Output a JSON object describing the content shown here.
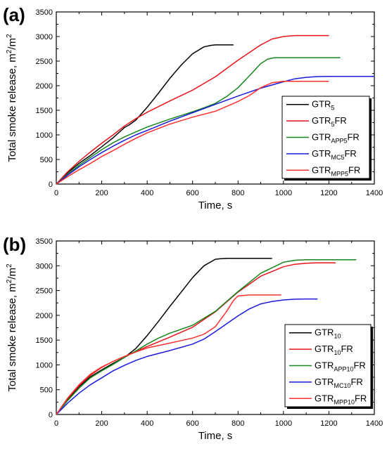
{
  "chart_data": [
    {
      "type": "line",
      "panel_label": "(a)",
      "xlabel": "Time, s",
      "ylabel": "Total smoke release, m",
      "ylabel_sup1": "2",
      "ylabel_mid": "/m",
      "ylabel_sup2": "2",
      "xlim": [
        0,
        1400
      ],
      "ylim": [
        0,
        3500
      ],
      "xticks": [
        0,
        200,
        400,
        600,
        800,
        1000,
        1200,
        1400
      ],
      "yticks": [
        0,
        500,
        1000,
        1500,
        2000,
        2500,
        3000,
        3500
      ],
      "grid": false,
      "legend_position": "bottom-right",
      "series": [
        {
          "name": "GTR",
          "sub": "5",
          "suffix": "",
          "color": "#000000",
          "x": [
            0,
            50,
            100,
            150,
            200,
            250,
            300,
            320,
            350,
            400,
            450,
            500,
            550,
            600,
            650,
            680,
            700,
            740,
            780
          ],
          "y": [
            0,
            230,
            420,
            580,
            760,
            940,
            1150,
            1200,
            1300,
            1560,
            1850,
            2150,
            2420,
            2650,
            2790,
            2820,
            2830,
            2830,
            2830
          ]
        },
        {
          "name": "GTR",
          "sub": "5",
          "suffix": "FR",
          "color": "#e8141b",
          "x": [
            0,
            50,
            100,
            150,
            200,
            250,
            300,
            350,
            400,
            500,
            600,
            700,
            800,
            900,
            950,
            1000,
            1050,
            1100,
            1200
          ],
          "y": [
            0,
            250,
            460,
            650,
            830,
            1000,
            1180,
            1330,
            1460,
            1690,
            1910,
            2180,
            2520,
            2830,
            2950,
            3000,
            3020,
            3020,
            3020
          ]
        },
        {
          "name": "GTR",
          "sub": "APP5",
          "suffix": "FR",
          "color": "#16861d",
          "x": [
            0,
            50,
            100,
            150,
            200,
            250,
            300,
            350,
            400,
            500,
            600,
            650,
            700,
            750,
            800,
            850,
            900,
            930,
            960,
            1000,
            1100,
            1250
          ],
          "y": [
            0,
            200,
            380,
            540,
            700,
            840,
            960,
            1060,
            1160,
            1320,
            1470,
            1550,
            1640,
            1780,
            1960,
            2200,
            2450,
            2540,
            2570,
            2570,
            2570,
            2570
          ]
        },
        {
          "name": "GTR",
          "sub": "MC5",
          "suffix": "FR",
          "color": "#1a1ae0",
          "x": [
            0,
            50,
            100,
            150,
            200,
            250,
            300,
            350,
            400,
            500,
            600,
            700,
            800,
            900,
            1000,
            1050,
            1100,
            1150,
            1200,
            1300,
            1400
          ],
          "y": [
            0,
            180,
            350,
            500,
            640,
            770,
            890,
            1000,
            1090,
            1280,
            1450,
            1620,
            1790,
            1950,
            2080,
            2140,
            2170,
            2185,
            2190,
            2190,
            2190
          ]
        },
        {
          "name": "GTR",
          "sub": "MPP5",
          "suffix": "FR",
          "color": "#ff3030",
          "x": [
            0,
            50,
            100,
            150,
            200,
            250,
            300,
            350,
            400,
            500,
            600,
            700,
            800,
            850,
            900,
            950,
            1000,
            1050,
            1100,
            1200
          ],
          "y": [
            0,
            150,
            290,
            420,
            560,
            680,
            810,
            930,
            1040,
            1220,
            1360,
            1480,
            1680,
            1800,
            1960,
            2060,
            2090,
            2090,
            2090,
            2090
          ]
        }
      ]
    },
    {
      "type": "line",
      "panel_label": "(b)",
      "xlabel": "Time, s",
      "ylabel": "Total smoke release, m",
      "ylabel_sup1": "2",
      "ylabel_mid": "/m",
      "ylabel_sup2": "2",
      "xlim": [
        0,
        1400
      ],
      "ylim": [
        0,
        3500
      ],
      "xticks": [
        0,
        200,
        400,
        600,
        800,
        1000,
        1200,
        1400
      ],
      "yticks": [
        0,
        500,
        1000,
        1500,
        2000,
        2500,
        3000,
        3500
      ],
      "grid": false,
      "legend_position": "bottom-right",
      "series": [
        {
          "name": "GTR",
          "sub": "10",
          "suffix": "",
          "color": "#000000",
          "x": [
            0,
            50,
            100,
            150,
            200,
            250,
            300,
            350,
            400,
            450,
            500,
            550,
            600,
            650,
            700,
            720,
            750,
            800,
            900,
            950
          ],
          "y": [
            0,
            300,
            560,
            760,
            900,
            1030,
            1150,
            1330,
            1590,
            1880,
            2180,
            2470,
            2760,
            3000,
            3130,
            3140,
            3150,
            3150,
            3150,
            3150
          ]
        },
        {
          "name": "GTR",
          "sub": "10",
          "suffix": "FR",
          "color": "#e8141b",
          "x": [
            0,
            50,
            100,
            150,
            200,
            250,
            300,
            350,
            400,
            500,
            600,
            700,
            800,
            900,
            1000,
            1050,
            1100,
            1150,
            1230
          ],
          "y": [
            0,
            320,
            580,
            790,
            950,
            1070,
            1170,
            1270,
            1370,
            1560,
            1760,
            2070,
            2470,
            2790,
            2980,
            3030,
            3050,
            3060,
            3060
          ]
        },
        {
          "name": "GTR",
          "sub": "APP10",
          "suffix": "FR",
          "color": "#16861d",
          "x": [
            0,
            50,
            100,
            150,
            200,
            250,
            300,
            350,
            400,
            450,
            500,
            600,
            700,
            800,
            900,
            1000,
            1050,
            1100,
            1200,
            1320
          ],
          "y": [
            0,
            280,
            530,
            740,
            880,
            1010,
            1150,
            1280,
            1420,
            1540,
            1640,
            1800,
            2080,
            2480,
            2850,
            3070,
            3110,
            3120,
            3120,
            3120
          ]
        },
        {
          "name": "GTR",
          "sub": "MC10",
          "suffix": "FR",
          "color": "#1a1ae0",
          "x": [
            0,
            50,
            100,
            150,
            200,
            250,
            300,
            350,
            400,
            500,
            600,
            650,
            700,
            750,
            800,
            850,
            900,
            950,
            1000,
            1050,
            1100,
            1150
          ],
          "y": [
            0,
            230,
            430,
            600,
            740,
            880,
            990,
            1090,
            1170,
            1290,
            1420,
            1520,
            1670,
            1830,
            1990,
            2130,
            2230,
            2280,
            2310,
            2325,
            2330,
            2330
          ]
        },
        {
          "name": "GTR",
          "sub": "MPP10",
          "suffix": "FR",
          "color": "#ff3030",
          "x": [
            0,
            50,
            100,
            150,
            200,
            250,
            300,
            350,
            400,
            500,
            600,
            650,
            700,
            750,
            780,
            800,
            850,
            900,
            990
          ],
          "y": [
            0,
            330,
            600,
            810,
            960,
            1070,
            1170,
            1260,
            1340,
            1440,
            1540,
            1620,
            1770,
            2080,
            2300,
            2390,
            2410,
            2410,
            2410
          ]
        }
      ]
    }
  ]
}
